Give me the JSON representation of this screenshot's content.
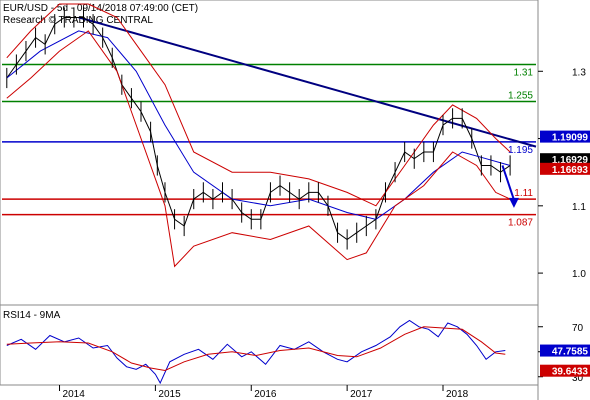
{
  "chart_data": [
    {
      "type": "line",
      "title": "EUR/USD - 5d - 09/14/2018 07:49:00 (CET)",
      "subtitle": "Research © TRADING CENTRAL",
      "ylim": [
        0.96,
        1.4
      ],
      "y_ticks": [
        "1.3",
        "1.2",
        "1.1",
        "1.0"
      ],
      "y_tick_values": [
        1.3,
        1.2,
        1.1,
        1.0
      ],
      "x_ticks": [
        "2014",
        "2015",
        "2016",
        "2017",
        "2018"
      ],
      "x_tick_values": [
        2014.0,
        2015.0,
        2016.0,
        2017.0,
        2018.0
      ],
      "xlim": [
        2013.4,
        2018.97
      ],
      "grid": false,
      "series": [
        {
          "role": "price",
          "color": "#000000",
          "x": [
            2013.45,
            2013.55,
            2013.65,
            2013.75,
            2013.85,
            2013.95,
            2014.05,
            2014.15,
            2014.25,
            2014.35,
            2014.45,
            2014.55,
            2014.65,
            2014.75,
            2014.85,
            2014.95,
            2015.02,
            2015.1,
            2015.2,
            2015.3,
            2015.4,
            2015.5,
            2015.6,
            2015.7,
            2015.8,
            2015.9,
            2016.0,
            2016.1,
            2016.2,
            2016.3,
            2016.4,
            2016.5,
            2016.6,
            2016.7,
            2016.8,
            2016.9,
            2017.0,
            2017.1,
            2017.2,
            2017.3,
            2017.4,
            2017.5,
            2017.6,
            2017.7,
            2017.8,
            2017.9,
            2018.0,
            2018.1,
            2018.2,
            2018.3,
            2018.4,
            2018.5,
            2018.6,
            2018.7
          ],
          "values": [
            1.29,
            1.31,
            1.33,
            1.35,
            1.34,
            1.37,
            1.38,
            1.38,
            1.38,
            1.37,
            1.35,
            1.32,
            1.28,
            1.26,
            1.24,
            1.21,
            1.16,
            1.12,
            1.08,
            1.07,
            1.11,
            1.12,
            1.11,
            1.12,
            1.11,
            1.09,
            1.08,
            1.08,
            1.12,
            1.13,
            1.12,
            1.11,
            1.12,
            1.12,
            1.1,
            1.06,
            1.05,
            1.06,
            1.07,
            1.08,
            1.12,
            1.15,
            1.18,
            1.17,
            1.18,
            1.18,
            1.22,
            1.23,
            1.23,
            1.2,
            1.16,
            1.16,
            1.15,
            1.16
          ]
        },
        {
          "role": "moving-average",
          "color": "#0000cc",
          "x": [
            2013.45,
            2013.8,
            2014.2,
            2014.5,
            2014.8,
            2015.1,
            2015.4,
            2015.8,
            2016.2,
            2016.6,
            2017.0,
            2017.3,
            2017.6,
            2017.9,
            2018.2,
            2018.45,
            2018.7
          ],
          "values": [
            1.29,
            1.33,
            1.36,
            1.35,
            1.3,
            1.22,
            1.15,
            1.11,
            1.1,
            1.11,
            1.09,
            1.08,
            1.11,
            1.15,
            1.18,
            1.17,
            1.16
          ]
        },
        {
          "role": "bollinger-upper",
          "color": "#cc0000",
          "x": [
            2013.45,
            2013.7,
            2014.0,
            2014.3,
            2014.6,
            2014.85,
            2015.1,
            2015.4,
            2015.8,
            2016.2,
            2016.6,
            2017.0,
            2017.3,
            2017.6,
            2017.9,
            2018.1,
            2018.35,
            2018.55,
            2018.7
          ],
          "values": [
            1.32,
            1.36,
            1.4,
            1.4,
            1.38,
            1.33,
            1.28,
            1.18,
            1.15,
            1.15,
            1.14,
            1.12,
            1.1,
            1.16,
            1.22,
            1.25,
            1.23,
            1.2,
            1.18
          ]
        },
        {
          "role": "bollinger-lower",
          "color": "#cc0000",
          "x": [
            2013.45,
            2013.7,
            2014.0,
            2014.3,
            2014.6,
            2014.85,
            2015.1,
            2015.2,
            2015.4,
            2015.8,
            2016.2,
            2016.6,
            2017.0,
            2017.2,
            2017.5,
            2017.8,
            2018.1,
            2018.35,
            2018.55,
            2018.7
          ],
          "values": [
            1.26,
            1.29,
            1.33,
            1.36,
            1.3,
            1.2,
            1.1,
            1.01,
            1.04,
            1.06,
            1.05,
            1.07,
            1.02,
            1.03,
            1.1,
            1.13,
            1.18,
            1.16,
            1.12,
            1.11
          ]
        }
      ],
      "levels": [
        {
          "label": "1.31",
          "value": 1.31,
          "color": "#008000"
        },
        {
          "label": "1.255",
          "value": 1.255,
          "color": "#008000"
        },
        {
          "label": "1.195",
          "value": 1.195,
          "color": "#0000cc"
        },
        {
          "label": "1.11",
          "value": 1.11,
          "color": "#cc0000"
        },
        {
          "label": "1.087",
          "value": 1.087,
          "color": "#cc0000"
        }
      ],
      "trendline": {
        "x": [
          2014.2,
          2018.97
        ],
        "values": [
          1.38,
          1.188
        ],
        "color": "#000080"
      },
      "forecast_arrow": {
        "x": [
          2018.62,
          2018.74
        ],
        "values": [
          1.16,
          1.1
        ],
        "color": "#0000cc"
      },
      "price_tags": [
        {
          "label": "1.19099",
          "value": 1.191,
          "color": "#0000cc"
        },
        {
          "label": "1.16929",
          "value": 1.1693,
          "color": "#000000"
        },
        {
          "label": "1.16693",
          "value": 1.1669,
          "color": "#cc0000"
        }
      ]
    },
    {
      "type": "line",
      "title": "RSI14 - 9MA",
      "ylim": [
        25,
        85
      ],
      "y_ticks": [
        "70",
        "50",
        "30"
      ],
      "y_tick_values": [
        70,
        50,
        30
      ],
      "xlim": [
        2013.4,
        2018.97
      ],
      "series": [
        {
          "role": "rsi",
          "color": "#0000cc",
          "x": [
            2013.45,
            2013.6,
            2013.75,
            2013.9,
            2014.05,
            2014.2,
            2014.35,
            2014.5,
            2014.6,
            2014.7,
            2014.8,
            2014.9,
            2015.0,
            2015.05,
            2015.15,
            2015.3,
            2015.45,
            2015.6,
            2015.75,
            2015.9,
            2016.0,
            2016.15,
            2016.3,
            2016.45,
            2016.6,
            2016.75,
            2016.9,
            2017.0,
            2017.15,
            2017.3,
            2017.45,
            2017.55,
            2017.65,
            2017.75,
            2017.85,
            2017.95,
            2018.05,
            2018.15,
            2018.25,
            2018.35,
            2018.45,
            2018.55,
            2018.65
          ],
          "values": [
            55,
            60,
            52,
            63,
            58,
            61,
            53,
            55,
            45,
            38,
            36,
            40,
            32,
            25,
            42,
            48,
            52,
            44,
            56,
            46,
            50,
            40,
            55,
            52,
            58,
            50,
            44,
            42,
            50,
            55,
            62,
            70,
            75,
            70,
            68,
            62,
            73,
            70,
            64,
            55,
            44,
            50,
            51
          ]
        },
        {
          "role": "rsi-ma",
          "color": "#cc0000",
          "x": [
            2013.45,
            2013.7,
            2014.0,
            2014.3,
            2014.55,
            2014.75,
            2014.95,
            2015.1,
            2015.3,
            2015.55,
            2015.8,
            2016.05,
            2016.3,
            2016.6,
            2016.9,
            2017.1,
            2017.35,
            2017.6,
            2017.8,
            2018.0,
            2018.2,
            2018.4,
            2018.55,
            2018.65
          ],
          "values": [
            56,
            57,
            58,
            57,
            50,
            41,
            37,
            35,
            42,
            48,
            50,
            47,
            51,
            53,
            47,
            46,
            53,
            64,
            70,
            69,
            68,
            58,
            49,
            48
          ]
        }
      ],
      "price_tags": [
        {
          "label": "47.7585",
          "value": 47.7585,
          "color": "#0000cc"
        },
        {
          "label": "39.6433",
          "value": 39.6433,
          "color": "#cc0000"
        }
      ]
    }
  ]
}
